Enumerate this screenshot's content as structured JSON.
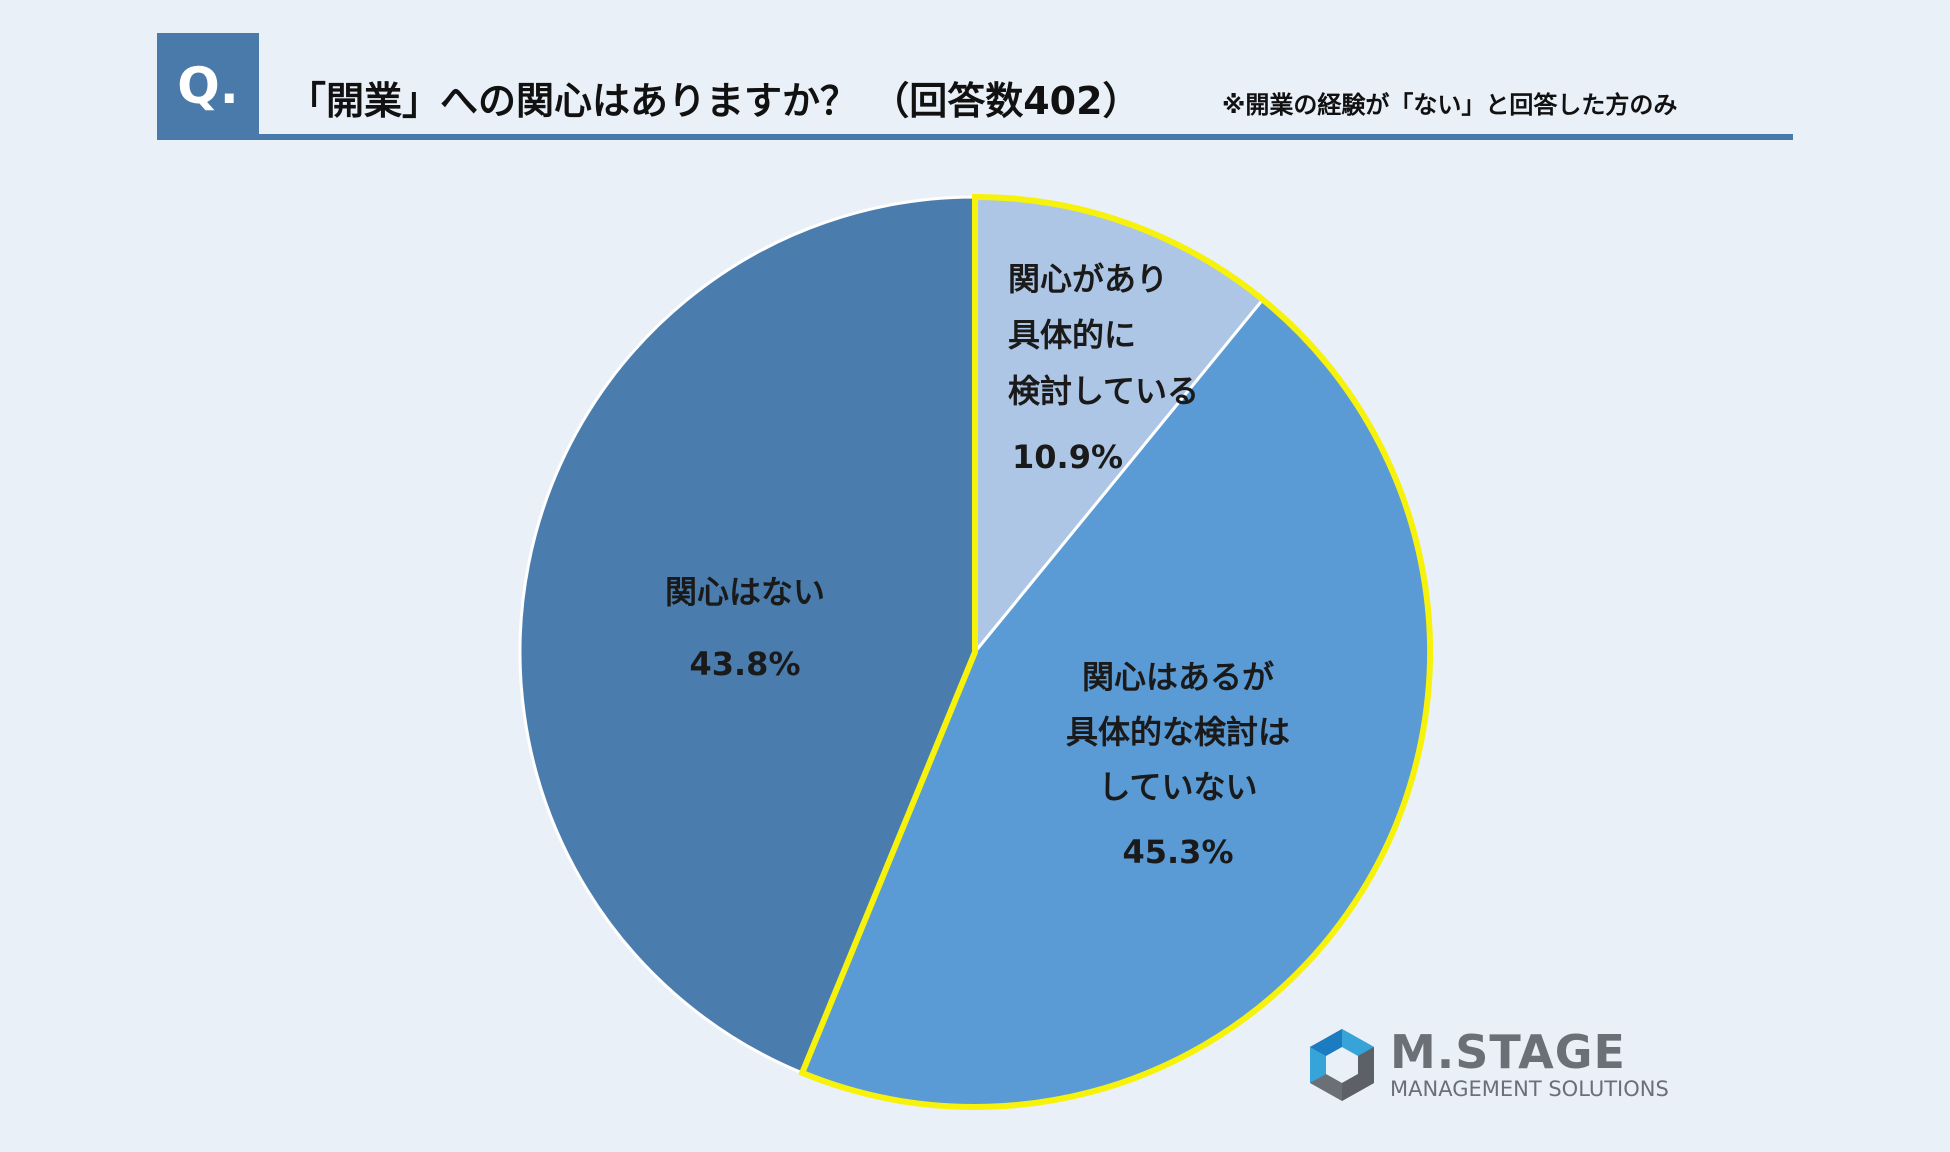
{
  "header": {
    "q_label": "Q.",
    "title": "「開業」への関心はありますか？ （回答数402）",
    "note": "※開業の経験が「ない」と回答した方のみ"
  },
  "chart_data": {
    "type": "pie",
    "title": "「開業」への関心はありますか？ （回答数402）",
    "slices": [
      {
        "label_lines": [
          "関心があり",
          "具体的に",
          "検討している"
        ],
        "value": 10.9,
        "value_label": "10.9%",
        "color": "#adc6e6",
        "highlight": true
      },
      {
        "label_lines": [
          "関心はあるが",
          "具体的な検討は",
          "していない"
        ],
        "value": 45.3,
        "value_label": "45.3%",
        "color": "#5b9bd5",
        "highlight": true
      },
      {
        "label_lines": [
          "関心はない"
        ],
        "value": 43.8,
        "value_label": "43.8%",
        "color": "#4a7dae",
        "highlight": false
      }
    ],
    "start_angle": "12 o'clock, clockwise",
    "highlight_color": "#f7f20c",
    "edge_color": "#ffffff"
  },
  "logo": {
    "name": "M.STAGE",
    "sub": "MANAGEMENT SOLUTIONS",
    "icon": "hexagon-logo-icon"
  }
}
